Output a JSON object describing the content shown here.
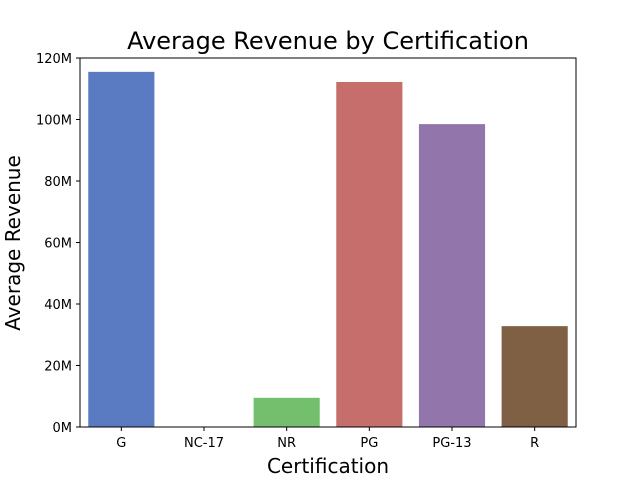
{
  "chart_data": {
    "type": "bar",
    "title": "Average Revenue by Certification",
    "xlabel": "Certification",
    "ylabel": "Average Revenue",
    "categories": [
      "G",
      "NC-17",
      "NR",
      "PG",
      "PG-13",
      "R"
    ],
    "values": [
      115500000,
      0,
      9500000,
      112200000,
      98500000,
      32800000
    ],
    "ylim": [
      0,
      120000000
    ],
    "yticks": [
      0,
      20000000,
      40000000,
      60000000,
      80000000,
      100000000,
      120000000
    ],
    "ytick_labels": [
      "0M",
      "20M",
      "40M",
      "60M",
      "80M",
      "100M",
      "120M"
    ],
    "colors": [
      "#5a7bc1",
      "#e08a54",
      "#73bf6d",
      "#c66e6c",
      "#9276ab",
      "#806045"
    ],
    "grid": false,
    "legend": "none"
  }
}
